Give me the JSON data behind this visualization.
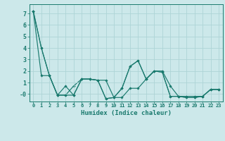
{
  "xlabel": "Humidex (Indice chaleur)",
  "x": [
    0,
    1,
    2,
    3,
    4,
    5,
    6,
    7,
    8,
    9,
    10,
    11,
    12,
    13,
    14,
    15,
    16,
    17,
    18,
    19,
    20,
    21,
    22,
    23
  ],
  "line1": [
    7.2,
    4.0,
    1.6,
    -0.1,
    0.7,
    -0.1,
    1.3,
    1.3,
    1.2,
    -0.4,
    -0.3,
    0.5,
    2.4,
    2.9,
    1.3,
    2.0,
    1.9,
    -0.2,
    -0.2,
    -0.3,
    -0.3,
    -0.2,
    0.4,
    0.4
  ],
  "line2": [
    7.2,
    1.6,
    1.6,
    -0.1,
    -0.1,
    -0.1,
    1.3,
    1.3,
    1.2,
    1.2,
    -0.3,
    -0.3,
    0.5,
    0.5,
    1.3,
    2.0,
    2.0,
    0.7,
    -0.2,
    -0.2,
    -0.2,
    -0.2,
    0.4,
    0.4
  ],
  "line3": [
    7.2,
    4.0,
    1.6,
    -0.1,
    -0.1,
    0.7,
    1.3,
    1.3,
    1.2,
    -0.4,
    -0.3,
    0.5,
    2.4,
    2.9,
    1.3,
    2.0,
    1.9,
    -0.2,
    -0.2,
    -0.3,
    -0.3,
    -0.2,
    0.4,
    0.4
  ],
  "ylim": [
    -0.65,
    7.8
  ],
  "ytick_labels": [
    "-0",
    "1",
    "2",
    "3",
    "4",
    "5",
    "6",
    "7"
  ],
  "ytick_vals": [
    0,
    1,
    2,
    3,
    4,
    5,
    6,
    7
  ],
  "bg_color": "#cce8ea",
  "grid_color": "#aed4d6",
  "line_color": "#1a7a6e",
  "marker": "D",
  "marker_size": 1.8,
  "line_width": 0.85
}
